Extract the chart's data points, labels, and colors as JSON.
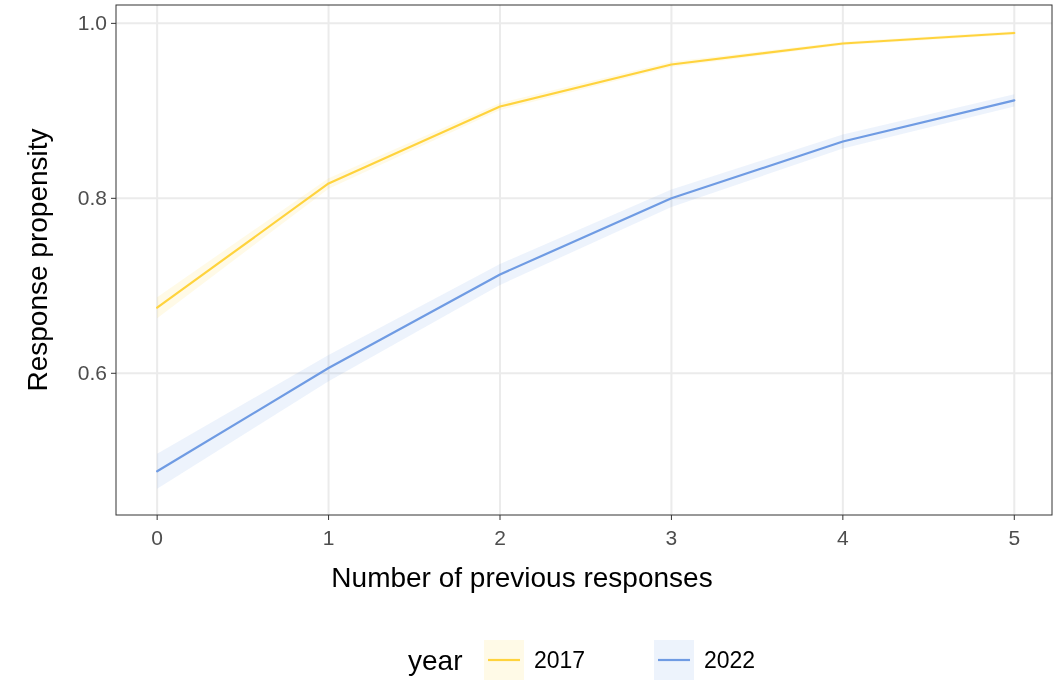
{
  "chart_data": {
    "type": "line",
    "xlabel": "Number of previous responses",
    "ylabel": "Response propensity",
    "legend_title": "year",
    "legend": "bottom",
    "grid": true,
    "xlim": [
      -0.24,
      5.22
    ],
    "ylim": [
      0.438,
      1.021
    ],
    "xticks": [
      0,
      1,
      2,
      3,
      4,
      5
    ],
    "yticks": [
      {
        "value": 0.6,
        "label": "0.6"
      },
      {
        "value": 0.8,
        "label": "0.8"
      },
      {
        "value": 1.0,
        "label": "1.0"
      }
    ],
    "x": [
      0,
      1,
      2,
      3,
      4,
      5
    ],
    "series": [
      {
        "name": "2017",
        "color": "#ffd33d",
        "values": [
          0.675,
          0.817,
          0.905,
          0.953,
          0.977,
          0.989
        ],
        "lower": [
          0.663,
          0.811,
          0.901,
          0.95,
          0.975,
          0.987
        ],
        "upper": [
          0.687,
          0.823,
          0.909,
          0.956,
          0.979,
          0.991
        ]
      },
      {
        "name": "2022",
        "color": "#6f9be3",
        "values": [
          0.488,
          0.606,
          0.713,
          0.8,
          0.865,
          0.912
        ],
        "lower": [
          0.468,
          0.591,
          0.701,
          0.79,
          0.857,
          0.905
        ],
        "upper": [
          0.508,
          0.621,
          0.725,
          0.81,
          0.873,
          0.919
        ]
      }
    ]
  }
}
